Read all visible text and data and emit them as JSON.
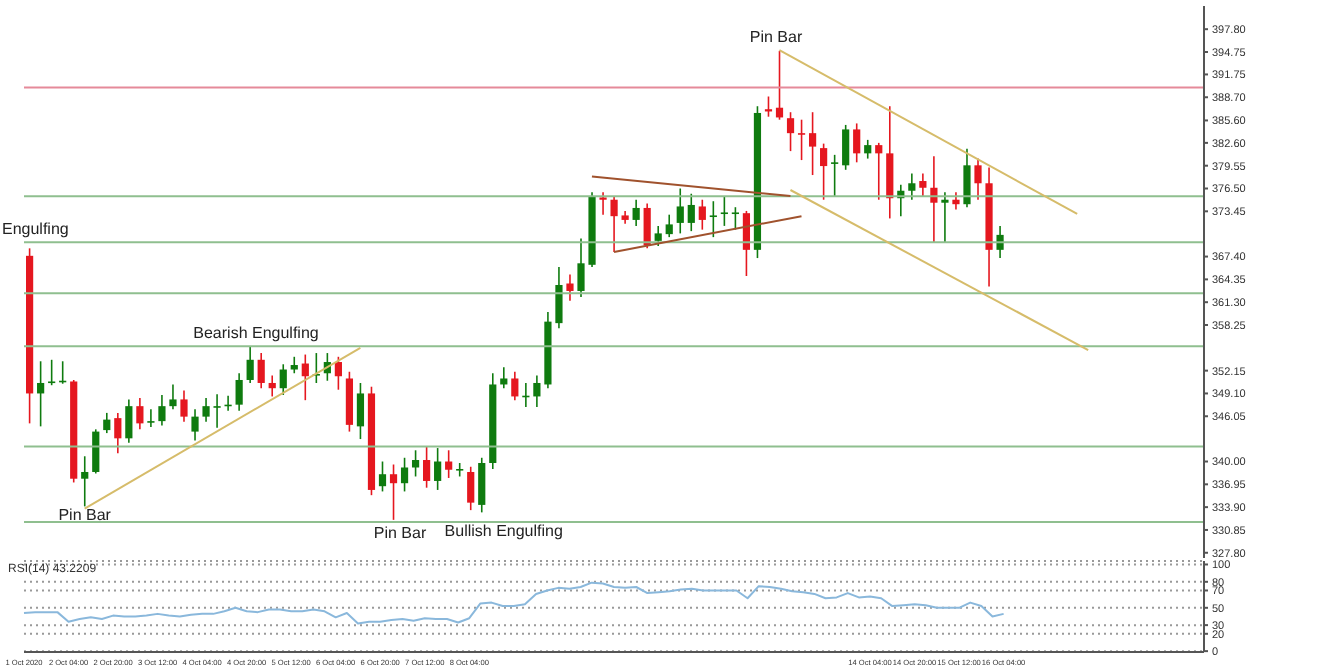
{
  "chart_data": [
    {
      "type": "candlestick",
      "tick_labels": "y",
      "categories": [
        null,
        null,
        null,
        null,
        null,
        null,
        null,
        null,
        null,
        null,
        null,
        null,
        null,
        null,
        null,
        null,
        null,
        null,
        null,
        null,
        null,
        null,
        null,
        null,
        null,
        null,
        null,
        null,
        null,
        null,
        null,
        null,
        null,
        null,
        null,
        null,
        null,
        null,
        null,
        null,
        null,
        null,
        null,
        null,
        null,
        null,
        null,
        null,
        null,
        null,
        null,
        null,
        null,
        null,
        null,
        null,
        null,
        null,
        null,
        null,
        null,
        null,
        null,
        null,
        null,
        null,
        null,
        null,
        null,
        null,
        null,
        null,
        null,
        null,
        null,
        null,
        null,
        null,
        null,
        null,
        null,
        null,
        null,
        null,
        null,
        null,
        null,
        null,
        null,
        null,
        null,
        null,
        null,
        null,
        null,
        null,
        null,
        null,
        null,
        null,
        null,
        null,
        null,
        null,
        null,
        null,
        null
      ],
      "ohlc": [
        [
          367.5,
          368.5,
          345.1,
          349.1
        ],
        [
          349.1,
          353.4,
          344.7,
          350.5
        ],
        [
          350.6,
          353.6,
          350.2,
          350.7
        ],
        [
          350.7,
          353.4,
          350.4,
          350.8
        ],
        [
          350.7,
          350.9,
          337.2,
          337.7
        ],
        [
          337.7,
          340.7,
          334.0,
          338.6
        ],
        [
          338.6,
          344.3,
          338.4,
          344.0
        ],
        [
          344.2,
          346.5,
          343.8,
          345.6
        ],
        [
          345.8,
          346.5,
          341.1,
          343.1
        ],
        [
          343.1,
          348.3,
          342.5,
          347.4
        ],
        [
          347.4,
          348.5,
          344.3,
          345.1
        ],
        [
          345.3,
          347.0,
          344.6,
          345.4
        ],
        [
          345.4,
          348.9,
          344.8,
          347.4
        ],
        [
          347.4,
          350.3,
          347.0,
          348.3
        ],
        [
          348.3,
          349.5,
          345.3,
          346.0
        ],
        [
          344.0,
          347.0,
          342.8,
          346.0
        ],
        [
          346.0,
          348.5,
          345.3,
          347.4
        ],
        [
          347.3,
          349.0,
          344.5,
          347.4
        ],
        [
          347.4,
          348.8,
          346.8,
          347.6
        ],
        [
          347.6,
          351.8,
          346.8,
          350.9
        ],
        [
          350.9,
          355.4,
          350.5,
          353.6
        ],
        [
          353.6,
          354.5,
          349.8,
          350.5
        ],
        [
          350.5,
          351.5,
          348.7,
          349.8
        ],
        [
          349.8,
          353.0,
          348.9,
          352.3
        ],
        [
          352.3,
          354.0,
          351.8,
          352.9
        ],
        [
          353.1,
          354.3,
          348.2,
          351.4
        ],
        [
          351.6,
          354.5,
          350.5,
          351.7
        ],
        [
          351.8,
          354.5,
          350.8,
          353.3
        ],
        [
          353.3,
          354.0,
          349.6,
          351.4
        ],
        [
          351.1,
          352.0,
          344.0,
          344.9
        ],
        [
          344.7,
          350.5,
          343.0,
          349.1
        ],
        [
          349.1,
          350.0,
          335.5,
          336.2
        ],
        [
          336.7,
          340.0,
          336.0,
          338.3
        ],
        [
          338.3,
          339.6,
          332.2,
          337.1
        ],
        [
          337.1,
          340.5,
          336.0,
          339.2
        ],
        [
          339.2,
          341.5,
          338.0,
          340.2
        ],
        [
          340.2,
          342.0,
          336.5,
          337.4
        ],
        [
          337.4,
          341.8,
          336.2,
          340.0
        ],
        [
          340.0,
          341.5,
          337.8,
          338.9
        ],
        [
          338.9,
          339.8,
          338.0,
          339.0
        ],
        [
          338.6,
          339.3,
          333.5,
          334.5
        ],
        [
          334.2,
          340.5,
          333.2,
          339.8
        ],
        [
          339.8,
          351.8,
          339.0,
          350.3
        ],
        [
          350.3,
          352.6,
          349.8,
          351.1
        ],
        [
          351.1,
          352.0,
          348.2,
          348.7
        ],
        [
          348.7,
          350.5,
          347.3,
          348.8
        ],
        [
          348.7,
          351.5,
          347.3,
          350.5
        ],
        [
          350.3,
          360.0,
          349.8,
          358.7
        ],
        [
          358.5,
          366.0,
          357.8,
          363.6
        ],
        [
          363.8,
          365.0,
          361.5,
          362.8
        ],
        [
          362.8,
          369.8,
          362.0,
          366.5
        ],
        [
          366.3,
          376.0,
          366.0,
          375.4
        ],
        [
          375.3,
          376.0,
          373.0,
          375.0
        ],
        [
          375.0,
          375.5,
          368.0,
          372.8
        ],
        [
          372.9,
          373.5,
          371.8,
          372.3
        ],
        [
          372.3,
          375.0,
          371.5,
          373.9
        ],
        [
          373.9,
          374.5,
          368.5,
          368.9
        ],
        [
          369.5,
          371.5,
          368.8,
          370.5
        ],
        [
          370.4,
          373.0,
          370.0,
          371.7
        ],
        [
          371.9,
          376.5,
          370.5,
          374.1
        ],
        [
          371.9,
          375.8,
          370.8,
          374.3
        ],
        [
          374.1,
          375.0,
          371.0,
          372.3
        ],
        [
          372.8,
          374.8,
          370.0,
          372.9
        ],
        [
          373.1,
          375.5,
          371.5,
          373.3
        ],
        [
          373.2,
          374.0,
          371.0,
          373.3
        ],
        [
          373.2,
          373.5,
          364.8,
          368.3
        ],
        [
          368.3,
          387.5,
          367.2,
          386.6
        ],
        [
          387.1,
          388.8,
          386.1,
          386.8
        ],
        [
          387.3,
          394.9,
          385.7,
          386.0
        ],
        [
          385.9,
          386.7,
          381.5,
          383.9
        ],
        [
          383.9,
          385.7,
          380.3,
          383.8
        ],
        [
          383.9,
          386.7,
          378.3,
          382.1
        ],
        [
          381.9,
          382.5,
          375.0,
          379.5
        ],
        [
          379.9,
          381.0,
          375.5,
          380.0
        ],
        [
          379.6,
          385.0,
          379.0,
          384.4
        ],
        [
          384.4,
          385.2,
          380.0,
          381.2
        ],
        [
          381.2,
          383.0,
          380.5,
          382.3
        ],
        [
          382.3,
          382.6,
          375.0,
          381.2
        ],
        [
          381.2,
          387.5,
          372.5,
          375.2
        ],
        [
          375.2,
          377.0,
          372.8,
          376.2
        ],
        [
          376.2,
          378.5,
          375.0,
          377.2
        ],
        [
          377.5,
          378.5,
          375.5,
          376.6
        ],
        [
          376.6,
          380.8,
          369.2,
          374.6
        ],
        [
          374.6,
          376.0,
          369.3,
          375.0
        ],
        [
          375.0,
          376.0,
          373.7,
          374.4
        ],
        [
          374.4,
          381.8,
          374.0,
          379.6
        ],
        [
          379.6,
          380.5,
          375.0,
          377.2
        ],
        [
          377.2,
          379.3,
          363.4,
          368.3
        ],
        [
          368.3,
          371.5,
          367.2,
          370.3
        ],
        null,
        null,
        null,
        null,
        null,
        null,
        null,
        null,
        null,
        null,
        null,
        null,
        null,
        null,
        null,
        null,
        null,
        null
      ],
      "colors": [
        "#e5171f",
        "#0f7b0f",
        "#0f7b0f",
        "#0f7b0f",
        "#e5171f",
        "#0f7b0f",
        "#0f7b0f",
        "#0f7b0f",
        "#e5171f",
        "#0f7b0f",
        "#e5171f",
        "#0f7b0f",
        "#0f7b0f",
        "#0f7b0f",
        "#e5171f",
        "#0f7b0f",
        "#0f7b0f",
        "#0f7b0f",
        "#0f7b0f",
        "#0f7b0f",
        "#0f7b0f",
        "#e5171f",
        "#e5171f",
        "#0f7b0f",
        "#0f7b0f",
        "#e5171f",
        "#0f7b0f",
        "#0f7b0f",
        "#e5171f",
        "#e5171f",
        "#0f7b0f",
        "#e5171f",
        "#0f7b0f",
        "#e5171f",
        "#0f7b0f",
        "#0f7b0f",
        "#e5171f",
        "#0f7b0f",
        "#e5171f",
        "#0f7b0f",
        "#e5171f",
        "#0f7b0f",
        "#0f7b0f",
        "#0f7b0f",
        "#e5171f",
        "#0f7b0f",
        "#0f7b0f",
        "#0f7b0f",
        "#0f7b0f",
        "#e5171f",
        "#0f7b0f",
        "#0f7b0f",
        "#e5171f",
        "#e5171f",
        "#e5171f",
        "#0f7b0f",
        "#e5171f",
        "#0f7b0f",
        "#0f7b0f",
        "#0f7b0f",
        "#0f7b0f",
        "#e5171f",
        "#0f7b0f",
        "#0f7b0f",
        "#0f7b0f",
        "#e5171f",
        "#0f7b0f",
        "#e5171f",
        "#e5171f",
        "#e5171f",
        "#e5171f",
        "#e5171f",
        "#e5171f",
        "#0f7b0f",
        "#0f7b0f",
        "#e5171f",
        "#0f7b0f",
        "#e5171f",
        "#e5171f",
        "#0f7b0f",
        "#0f7b0f",
        "#e5171f",
        "#e5171f",
        "#0f7b0f",
        "#e5171f",
        "#0f7b0f",
        "#e5171f",
        "#e5171f",
        "#0f7b0f",
        null,
        null,
        null,
        null,
        null,
        null,
        null,
        null,
        null,
        null,
        null,
        null,
        null,
        null,
        null,
        null,
        null,
        null
      ],
      "series": [
        {
          "type": "line",
          "color": "#d6bc6a",
          "values": [
            null,
            null,
            null,
            null,
            null,
            333.7,
            null,
            null,
            null,
            null,
            null,
            null,
            null,
            null,
            null,
            null,
            null,
            null,
            null,
            null,
            null,
            null,
            null,
            null,
            null,
            null,
            null,
            null,
            null,
            null,
            355.2,
            null,
            null,
            null,
            null,
            null,
            null,
            null,
            null,
            null,
            null,
            null,
            null,
            null,
            null,
            null,
            null,
            null,
            null,
            null,
            null,
            null,
            null,
            null,
            null,
            null,
            null,
            null,
            null,
            null,
            null,
            null,
            null,
            null,
            null,
            null,
            null,
            null,
            null,
            null,
            null,
            null,
            null,
            null,
            null,
            null,
            null,
            null,
            null,
            null,
            null,
            null,
            null,
            null,
            null,
            null,
            null,
            null,
            null,
            null,
            null,
            null,
            null,
            null,
            null,
            null,
            null,
            null,
            null,
            null,
            null,
            null,
            null,
            null,
            null,
            null,
            null
          ]
        },
        {
          "type": "line",
          "color": "#d6bc6a",
          "values": [
            null,
            null,
            null,
            null,
            null,
            null,
            null,
            null,
            null,
            null,
            null,
            null,
            null,
            null,
            null,
            null,
            null,
            null,
            null,
            null,
            null,
            null,
            null,
            null,
            null,
            null,
            null,
            null,
            null,
            null,
            null,
            null,
            null,
            null,
            null,
            null,
            null,
            null,
            null,
            null,
            null,
            null,
            null,
            null,
            null,
            null,
            null,
            null,
            null,
            null,
            null,
            null,
            null,
            null,
            null,
            null,
            null,
            null,
            null,
            null,
            null,
            null,
            null,
            null,
            null,
            null,
            null,
            null,
            395.0,
            null,
            null,
            null,
            null,
            null,
            null,
            null,
            null,
            null,
            null,
            null,
            null,
            null,
            null,
            null,
            null,
            null,
            null,
            null,
            null,
            null,
            null,
            null,
            null,
            null,
            null,
            373.1,
            null,
            null,
            null,
            null,
            null,
            null,
            null,
            null,
            null,
            null,
            null
          ]
        },
        {
          "type": "line",
          "color": "#d6bc6a",
          "values": [
            null,
            null,
            null,
            null,
            null,
            null,
            null,
            null,
            null,
            null,
            null,
            null,
            null,
            null,
            null,
            null,
            null,
            null,
            null,
            null,
            null,
            null,
            null,
            null,
            null,
            null,
            null,
            null,
            null,
            null,
            null,
            null,
            null,
            null,
            null,
            null,
            null,
            null,
            null,
            null,
            null,
            null,
            null,
            null,
            null,
            null,
            null,
            null,
            null,
            null,
            null,
            null,
            null,
            null,
            null,
            null,
            null,
            null,
            null,
            null,
            null,
            null,
            null,
            null,
            null,
            null,
            null,
            null,
            null,
            376.3,
            null,
            null,
            null,
            null,
            null,
            null,
            null,
            null,
            null,
            null,
            null,
            null,
            null,
            null,
            null,
            null,
            null,
            null,
            null,
            null,
            null,
            null,
            null,
            null,
            null,
            null,
            354.9,
            null,
            null,
            null,
            null,
            null,
            null,
            null,
            null,
            null,
            null
          ]
        },
        {
          "type": "line",
          "color": "#a0522d",
          "values": [
            null,
            null,
            null,
            null,
            null,
            null,
            null,
            null,
            null,
            null,
            null,
            null,
            null,
            null,
            null,
            null,
            null,
            null,
            null,
            null,
            null,
            null,
            null,
            null,
            null,
            null,
            null,
            null,
            null,
            null,
            null,
            null,
            null,
            null,
            null,
            null,
            null,
            null,
            null,
            null,
            null,
            null,
            null,
            null,
            null,
            null,
            null,
            null,
            null,
            null,
            null,
            378.1,
            null,
            null,
            null,
            null,
            null,
            null,
            null,
            null,
            null,
            null,
            null,
            null,
            null,
            null,
            null,
            null,
            null,
            375.5,
            null,
            null,
            null,
            null,
            null,
            null,
            null,
            null,
            null,
            null,
            null,
            null,
            null,
            null,
            null,
            null,
            null,
            null,
            null,
            null,
            null,
            null,
            null,
            null,
            null,
            null,
            null,
            null,
            null,
            null,
            null,
            null,
            null,
            null,
            null,
            null,
            null
          ]
        },
        {
          "type": "line",
          "color": "#a0522d",
          "values": [
            null,
            null,
            null,
            null,
            null,
            null,
            null,
            null,
            null,
            null,
            null,
            null,
            null,
            null,
            null,
            null,
            null,
            null,
            null,
            null,
            null,
            null,
            null,
            null,
            null,
            null,
            null,
            null,
            null,
            null,
            null,
            null,
            null,
            null,
            null,
            null,
            null,
            null,
            null,
            null,
            null,
            null,
            null,
            null,
            null,
            null,
            null,
            null,
            null,
            null,
            null,
            null,
            null,
            368.0,
            null,
            null,
            null,
            null,
            null,
            null,
            null,
            null,
            null,
            null,
            null,
            null,
            null,
            null,
            null,
            null,
            372.8,
            null,
            null,
            null,
            null,
            null,
            null,
            null,
            null,
            null,
            null,
            null,
            null,
            null,
            null,
            null,
            null,
            null,
            null,
            null,
            null,
            null,
            null,
            null,
            null,
            null,
            null,
            null,
            null,
            null,
            null,
            null,
            null,
            null,
            null,
            null,
            null
          ]
        }
      ],
      "ylim": [
        327.1,
        400.9
      ],
      "yticks": [
        {
          "value": 397.8,
          "label": "397.80"
        },
        {
          "value": 394.75,
          "label": "394.75"
        },
        {
          "value": 391.75,
          "label": "391.75"
        },
        {
          "value": 388.7,
          "label": "388.70"
        },
        {
          "value": 385.6,
          "label": "385.60"
        },
        {
          "value": 382.6,
          "label": "382.60"
        },
        {
          "value": 379.55,
          "label": "379.55"
        },
        {
          "value": 376.5,
          "label": "376.50"
        },
        {
          "value": 373.45,
          "label": "373.45"
        },
        {
          "value": 367.4,
          "label": "367.40"
        },
        {
          "value": 364.35,
          "label": "364.35"
        },
        {
          "value": 361.3,
          "label": "361.30"
        },
        {
          "value": 358.25,
          "label": "358.25"
        },
        {
          "value": 352.15,
          "label": "352.15"
        },
        {
          "value": 349.1,
          "label": "349.10"
        },
        {
          "value": 346.05,
          "label": "346.05"
        },
        {
          "value": 340.0,
          "label": "340.00"
        },
        {
          "value": 336.95,
          "label": "336.95"
        },
        {
          "value": 333.9,
          "label": "333.90"
        },
        {
          "value": 330.85,
          "label": "330.85"
        },
        {
          "value": 327.8,
          "label": "327.80"
        }
      ],
      "ref_lines": [
        {
          "axis": "y",
          "value": 390.0,
          "color": "#e58a9a"
        },
        {
          "axis": "y",
          "value": 375.45,
          "color": "#8fbf8f"
        },
        {
          "axis": "y",
          "value": 369.3,
          "color": "#8fbf8f"
        },
        {
          "axis": "y",
          "value": 362.5,
          "color": "#8fbf8f"
        },
        {
          "axis": "y",
          "value": 355.4,
          "color": "#8fbf8f"
        },
        {
          "axis": "y",
          "value": 342.0,
          "color": "#8fbf8f"
        },
        {
          "axis": "y",
          "value": 331.9,
          "color": "#8fbf8f"
        }
      ],
      "annotations": [
        "Engulfing",
        {
          "text": "Pin Bar",
          "y": 332.7
        },
        "Bearish Engulfing",
        "Pin Bar",
        {
          "text": "Bullish Engulfing",
          "y": 330.6
        },
        "Pin Bar"
      ]
    },
    {
      "type": "line",
      "title": "RSI(14) 43.2209",
      "grid": "y",
      "categories": [
        "1 Oct 2020",
        null,
        null,
        null,
        "2 Oct 04:00",
        null,
        null,
        null,
        "2 Oct 20:00",
        null,
        null,
        null,
        "3 Oct 12:00",
        null,
        null,
        null,
        "4 Oct 04:00",
        null,
        null,
        null,
        "4 Oct 20:00",
        null,
        null,
        null,
        "5 Oct 12:00",
        null,
        null,
        null,
        "6 Oct 04:00",
        null,
        null,
        null,
        "6 Oct 20:00",
        null,
        null,
        null,
        "7 Oct 12:00",
        null,
        null,
        null,
        "8 Oct 04:00",
        null,
        null,
        null,
        null,
        null,
        null,
        null,
        null,
        null,
        null,
        null,
        null,
        null,
        null,
        null,
        null,
        null,
        null,
        null,
        null,
        null,
        null,
        null,
        null,
        null,
        null,
        null,
        null,
        null,
        null,
        null,
        null,
        null,
        null,
        null,
        "14 Oct 04:00",
        null,
        null,
        null,
        "14 Oct 20:00",
        null,
        null,
        null,
        "15 Oct 12:00",
        null,
        null,
        null,
        "16 Oct 04:00",
        null,
        null,
        null,
        null,
        null,
        null,
        null,
        null,
        null,
        null,
        null,
        null,
        null,
        null,
        null,
        null,
        null,
        null
      ],
      "series": [
        {
          "color": "#8ab8dc",
          "values": [
            44,
            45,
            45,
            45,
            34,
            37,
            39,
            37,
            41,
            40,
            40,
            41,
            43,
            41,
            40,
            42,
            43,
            43,
            46,
            50,
            46,
            45,
            48,
            48,
            46,
            46,
            48,
            46,
            39,
            44,
            32,
            34,
            34,
            36,
            37,
            35,
            38,
            37,
            37,
            33,
            38,
            55,
            56,
            52,
            52,
            54,
            66,
            70,
            73,
            72,
            74,
            79,
            78,
            74,
            73,
            74,
            67,
            68,
            69,
            71,
            72,
            70,
            70,
            70,
            70,
            61,
            75,
            74,
            72,
            69,
            68,
            66,
            61,
            62,
            67,
            62,
            63,
            61,
            52,
            53,
            54,
            53,
            50,
            50,
            50,
            56,
            52,
            40,
            43,
            null,
            null,
            null,
            null,
            null,
            null,
            null,
            null,
            null,
            null,
            null,
            null,
            null,
            null,
            null,
            null,
            null,
            null
          ]
        }
      ],
      "ylim": [
        -1,
        104
      ],
      "yticks": [
        0,
        20,
        30,
        50,
        70,
        80,
        100
      ]
    }
  ]
}
